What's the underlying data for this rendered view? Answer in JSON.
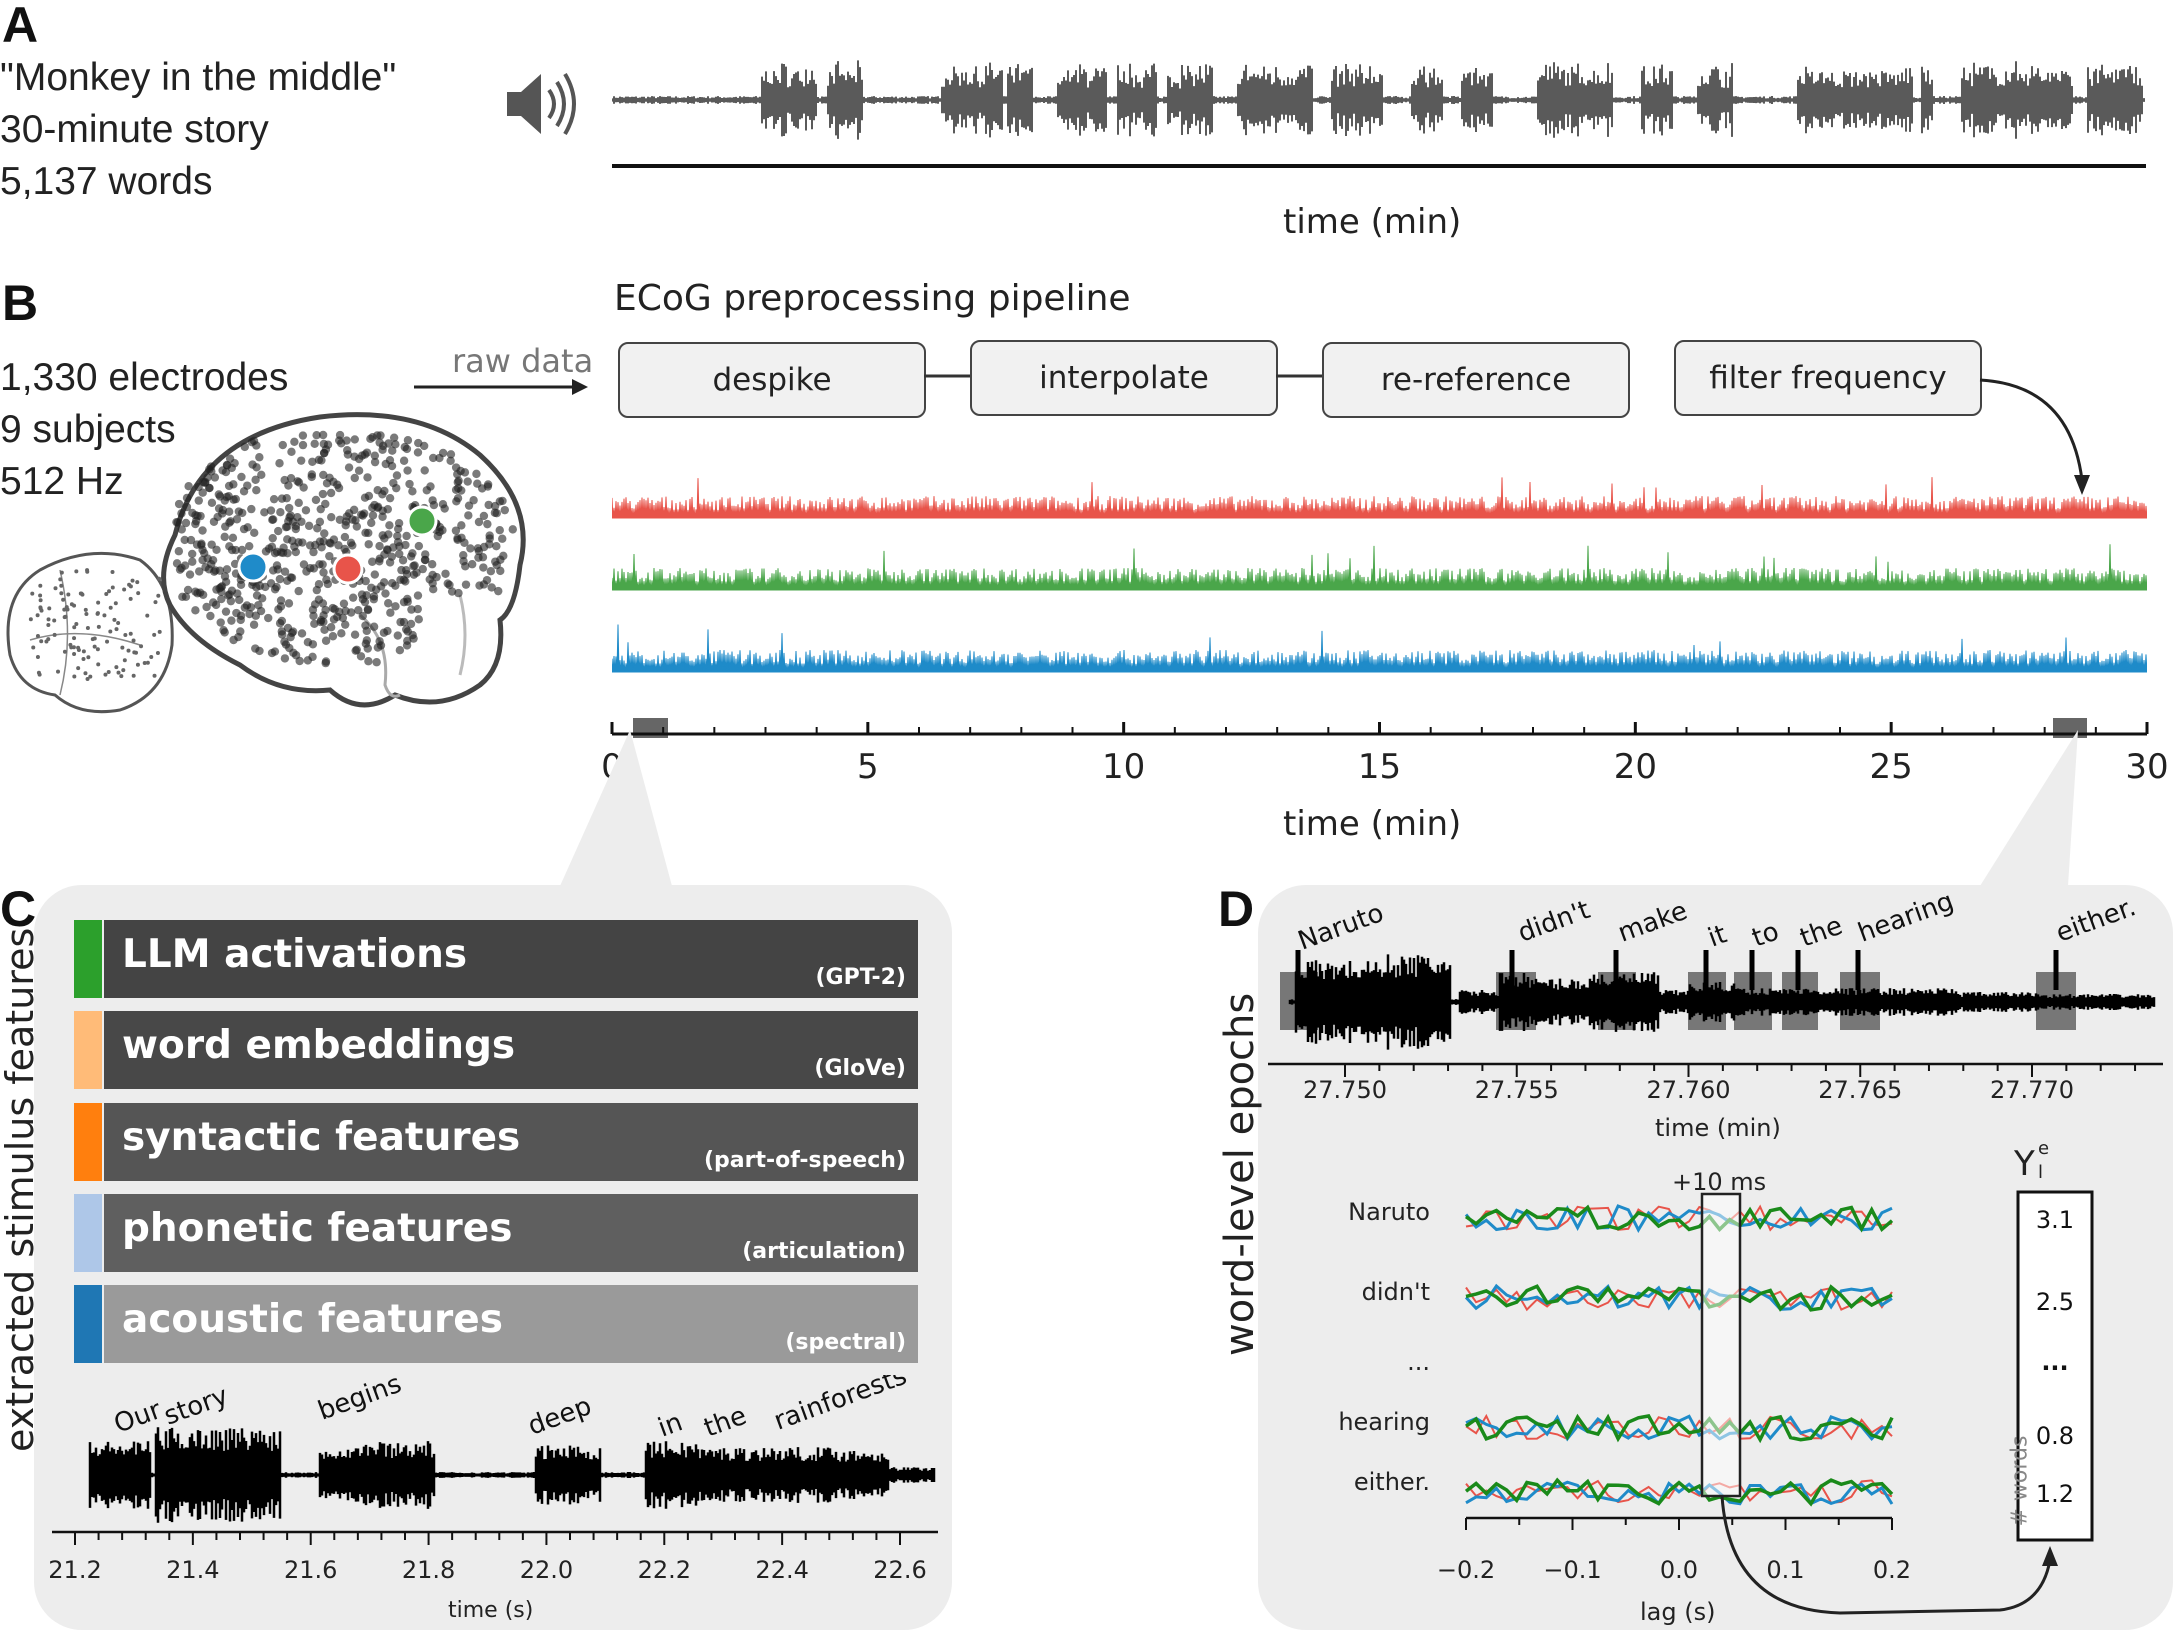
{
  "colors": {
    "red": "#e8544a",
    "green": "#4aa64a",
    "blue": "#1f8bc9",
    "dark_green": "#1a8a1a",
    "waveform": "#5a5a5a",
    "feature_bar_dark": "#444444",
    "feature_bar_mid": "#5f5f5f",
    "feature_bar_light": "#9a9a9a"
  },
  "panel_a": {
    "letter": "A",
    "story_title": "\"Monkey in the middle\"",
    "story_length": "30-minute story",
    "word_count": "5,137 words",
    "speaker_icon": "speaker-icon",
    "xlabel": "time (min)"
  },
  "panel_b": {
    "letter": "B",
    "electrodes": "1,330 electrodes",
    "subjects": "9 subjects",
    "rate": "512 Hz",
    "raw_data_label": "raw data",
    "pipeline_title": "ECoG preprocessing pipeline",
    "steps": [
      "despike",
      "interpolate",
      "re-reference",
      "filter frequency"
    ],
    "xlabel": "time (min)"
  },
  "panel_c": {
    "letter": "C",
    "ylabel": "extracted stimulus features",
    "features": [
      {
        "name": "LLM activations",
        "source": "(GPT-2)",
        "color": "#2ca02c"
      },
      {
        "name": "word embeddings",
        "source": "(GloVe)",
        "color": "#ffbb78"
      },
      {
        "name": "syntactic features",
        "source": "(part-of-speech)",
        "color": "#ff7f0e"
      },
      {
        "name": "phonetic features",
        "source": "(articulation)",
        "color": "#aec7e8"
      },
      {
        "name": "acoustic features",
        "source": "(spectral)",
        "color": "#1f77b4"
      }
    ],
    "words": [
      "Our",
      "story",
      "begins",
      "deep",
      "in",
      "the",
      "rainforests"
    ],
    "xlabel": "time (s)"
  },
  "panel_d": {
    "letter": "D",
    "ylabel": "word-level epochs",
    "words": [
      "Naruto",
      "didn't",
      "make",
      "it",
      "to",
      "the",
      "hearing",
      "either."
    ],
    "xlabel_top": "time (min)",
    "lag_annotation": "+10 ms",
    "epoch_rows": [
      "Naruto",
      "didn't",
      "...",
      "hearing",
      "either."
    ],
    "xlabel_bottom": "lag (s)",
    "y_label": "Y",
    "y_superscript": "e",
    "y_subscript": "l",
    "y_values": [
      "3.1",
      "2.5",
      "···",
      "0.8",
      "1.2"
    ],
    "n_words_label": "# words"
  },
  "chart_data": [
    {
      "type": "line",
      "title": "",
      "xlabel": "time (min)",
      "ylabel": "",
      "xlim": [
        0,
        30
      ],
      "x_ticks": [
        "0",
        "5",
        "10",
        "15",
        "20",
        "25",
        "30"
      ],
      "series": [
        {
          "values": []
        },
        {
          "values": []
        },
        {
          "values": []
        }
      ]
    },
    {
      "type": "line",
      "xlabel": "time (s)",
      "xlim": [
        21.2,
        22.6
      ],
      "x_ticks": [
        "21.2",
        "21.4",
        "21.6",
        "21.8",
        "22.0",
        "22.2",
        "22.4",
        "22.6"
      ]
    },
    {
      "type": "line",
      "xlabel": "time (min)",
      "x_ticks": [
        "27.750",
        "27.755",
        "27.760",
        "27.765",
        "27.770"
      ]
    },
    {
      "type": "line",
      "xlabel": "lag (s)",
      "xlim": [
        -0.2,
        0.2
      ],
      "x_ticks": [
        "−0.2",
        "−0.1",
        "0.0",
        "0.1",
        "0.2"
      ]
    }
  ]
}
